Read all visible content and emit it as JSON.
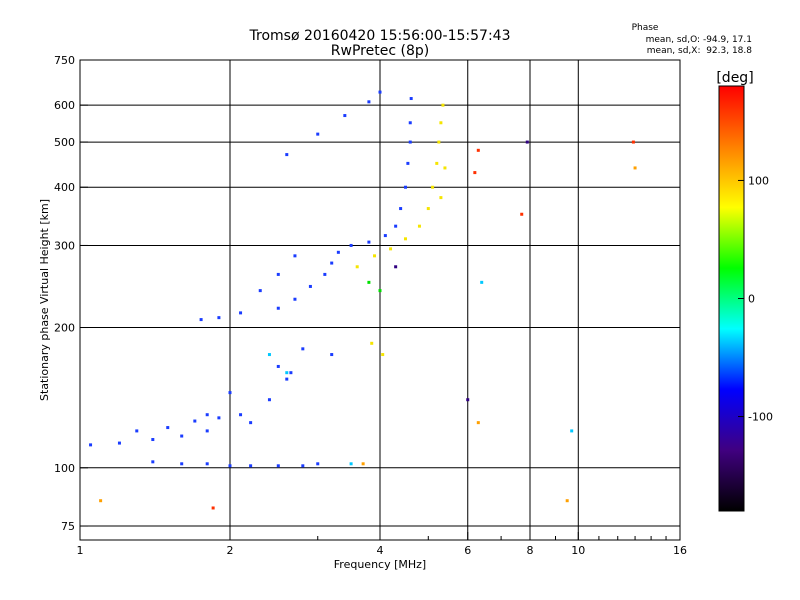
{
  "chart_data": {
    "type": "scatter",
    "title_line1": "Tromsø 20160420 15:56:00-15:57:43",
    "title_line2": "RwPretec (8p)",
    "xlabel": "Frequency [MHz]",
    "ylabel": "Stationary phase Virtual Height [km]",
    "x_scale": "log",
    "y_scale": "log",
    "xlim": [
      1,
      16
    ],
    "ylim": [
      70,
      750
    ],
    "x_ticks": [
      1,
      2,
      4,
      6,
      8,
      10,
      16
    ],
    "x_tick_labels": [
      "1",
      "2",
      "4",
      "6",
      "8",
      "10",
      "16"
    ],
    "y_ticks": [
      75,
      100,
      200,
      300,
      400,
      500,
      600,
      750
    ],
    "y_tick_labels": [
      "75",
      "100",
      "200",
      "300",
      "400",
      "500",
      "600",
      "750"
    ],
    "grid": true,
    "phase_info": {
      "title": "Phase",
      "line_o": "mean, sd,O: -94.9, 17.1",
      "line_x": "mean, sd,X:  92.3, 18.8"
    },
    "colorbar": {
      "unit_label": "[deg]",
      "range": [
        -180,
        180
      ],
      "ticks": [
        100,
        0,
        -100
      ],
      "tick_labels": [
        "100",
        "0",
        "-100"
      ],
      "colors": [
        "#ff0000",
        "#ff8000",
        "#ffff00",
        "#00ff00",
        "#00ffff",
        "#0000ff",
        "#400080",
        "#000000"
      ]
    },
    "series": [
      {
        "color": "#1a3cff",
        "x": [
          1.05,
          1.2,
          1.4,
          1.6,
          1.8,
          1.3,
          1.5,
          1.7,
          1.9,
          2.1,
          1.4,
          1.6,
          1.8,
          2.0,
          2.2,
          2.5,
          2.8,
          3.0,
          1.75,
          1.9,
          2.1,
          2.3,
          2.5,
          2.7,
          2.5,
          2.7,
          2.9,
          3.1,
          3.2,
          3.3,
          3.5,
          3.8,
          4.1,
          4.3,
          4.4,
          4.5,
          4.55,
          4.6,
          4.6,
          4.62,
          2.6,
          3.0,
          3.4,
          3.8,
          4.0,
          2.8,
          3.2,
          2.5,
          2.65,
          1.8,
          2.0,
          2.4,
          2.6,
          2.2
        ],
        "y": [
          112,
          113,
          115,
          117,
          120,
          120,
          122,
          126,
          128,
          130,
          103,
          102,
          102,
          101,
          101,
          101,
          101,
          102,
          208,
          210,
          215,
          240,
          260,
          285,
          220,
          230,
          245,
          260,
          275,
          290,
          300,
          305,
          315,
          330,
          360,
          400,
          450,
          500,
          550,
          620,
          470,
          520,
          570,
          610,
          640,
          180,
          175,
          165,
          160,
          130,
          145,
          140,
          155,
          125
        ]
      },
      {
        "color": "#f5e500",
        "x": [
          3.6,
          3.9,
          4.2,
          4.5,
          4.8,
          5.0,
          5.1,
          5.2,
          5.25,
          5.3,
          5.35,
          5.4,
          5.3,
          3.85,
          4.05
        ],
        "y": [
          270,
          285,
          295,
          310,
          330,
          360,
          400,
          450,
          500,
          550,
          600,
          440,
          380,
          185,
          175
        ]
      },
      {
        "color": "#ff3000",
        "x": [
          6.2,
          6.3,
          7.7,
          12.9,
          1.85
        ],
        "y": [
          430,
          480,
          350,
          500,
          82
        ]
      },
      {
        "color": "#00c8ff",
        "x": [
          6.4,
          2.4,
          2.6,
          9.7,
          3.5
        ],
        "y": [
          250,
          175,
          160,
          120,
          102
        ]
      },
      {
        "color": "#ffa000",
        "x": [
          6.3,
          9.5,
          13.0,
          1.1,
          3.7
        ],
        "y": [
          125,
          85,
          440,
          85,
          102
        ]
      },
      {
        "color": "#00e000",
        "x": [
          3.8,
          4.0
        ],
        "y": [
          250,
          240
        ]
      },
      {
        "color": "#300080",
        "x": [
          6.0,
          7.9,
          4.3
        ],
        "y": [
          140,
          500,
          270
        ]
      }
    ]
  }
}
